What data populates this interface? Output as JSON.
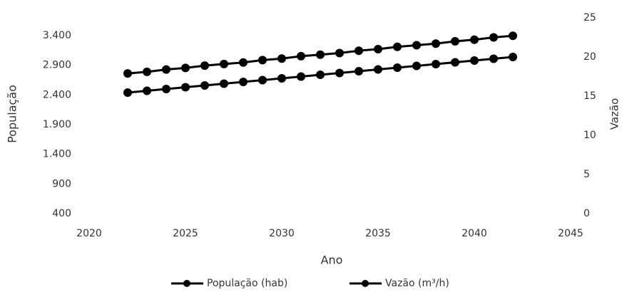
{
  "chart_data": {
    "type": "line",
    "x_label": "Ano",
    "y_label": "População",
    "y2_label": "Vazão",
    "x": [
      2022,
      2023,
      2024,
      2025,
      2026,
      2027,
      2028,
      2029,
      2030,
      2031,
      2032,
      2033,
      2034,
      2035,
      2036,
      2037,
      2038,
      2039,
      2040,
      2041,
      2042
    ],
    "series": [
      {
        "name": "População (hab)",
        "color": "#000000",
        "values": [
          2440,
          2470,
          2500,
          2530,
          2560,
          2590,
          2620,
          2650,
          2680,
          2710,
          2740,
          2770,
          2800,
          2830,
          2860,
          2890,
          2920,
          2950,
          2980,
          3010,
          3040
        ]
      },
      {
        "name": "Vazão (m³/h)",
        "color": "#000000",
        "axis": "y2",
        "values": [
          17.9,
          18.1,
          18.4,
          18.6,
          18.9,
          19.1,
          19.3,
          19.6,
          19.8,
          20.1,
          20.3,
          20.5,
          20.8,
          21.0,
          21.3,
          21.5,
          21.7,
          22.0,
          22.2,
          22.5,
          22.7
        ]
      }
    ],
    "xlim": [
      2020,
      2045
    ],
    "xticks": [
      2020,
      2025,
      2030,
      2035,
      2040,
      2045
    ],
    "ylim": [
      400,
      3700
    ],
    "yticks": [
      400,
      900,
      {
        "value": 1400,
        "label": "1.400"
      },
      {
        "value": 1900,
        "label": "1.900"
      },
      {
        "value": 2400,
        "label": "2.400"
      },
      {
        "value": 2900,
        "label": "2.900"
      },
      {
        "value": 3400,
        "label": "3.400"
      }
    ],
    "y2lim": [
      0,
      25
    ],
    "y2ticks": [
      0,
      5,
      10,
      15,
      20,
      25
    ],
    "grid": false,
    "legend": "bottom"
  }
}
